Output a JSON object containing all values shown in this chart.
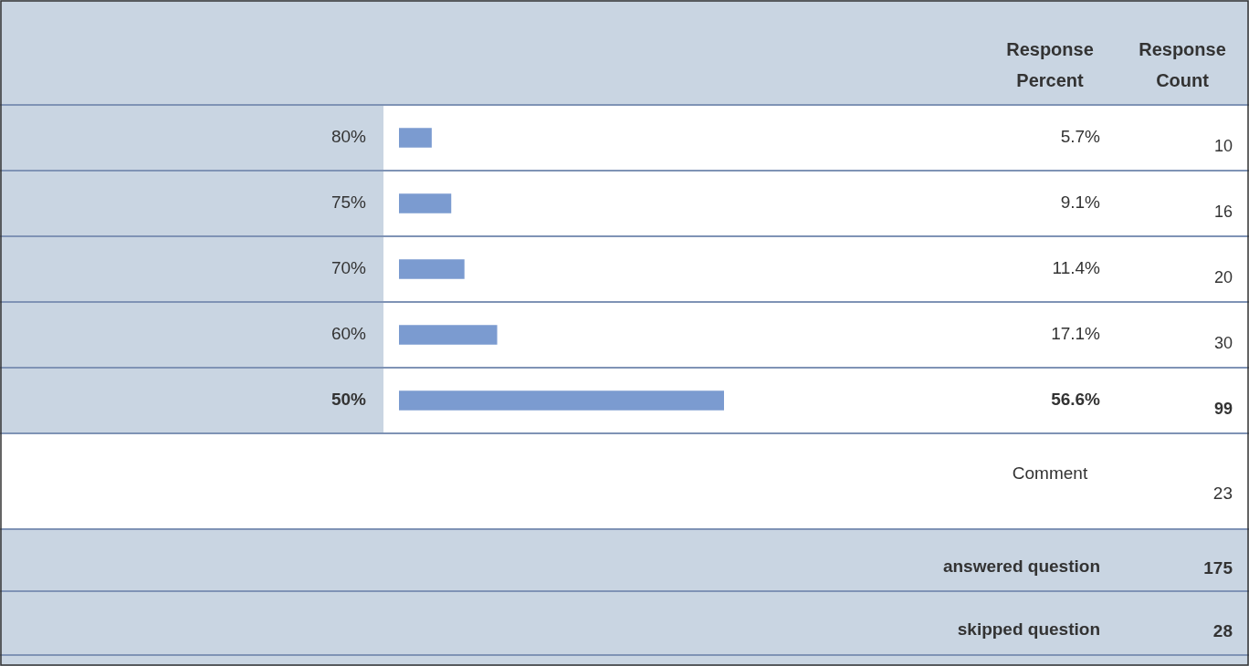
{
  "chart_data": {
    "type": "bar",
    "orientation": "horizontal",
    "categories": [
      "80%",
      "75%",
      "70%",
      "60%",
      "50%"
    ],
    "values": [
      5.7,
      9.1,
      11.4,
      17.1,
      56.6
    ],
    "value_labels": [
      "5.7%",
      "9.1%",
      "11.4%",
      "17.1%",
      "56.6%"
    ],
    "color": "#7b9bd0",
    "tick_labels": "y",
    "legend": false,
    "annotations": [
      "Response Percent",
      "Response Count",
      "10",
      "16",
      "20",
      "30",
      "99",
      "Comment",
      "23",
      "answered question",
      "175",
      "skipped question",
      "28"
    ]
  }
}
